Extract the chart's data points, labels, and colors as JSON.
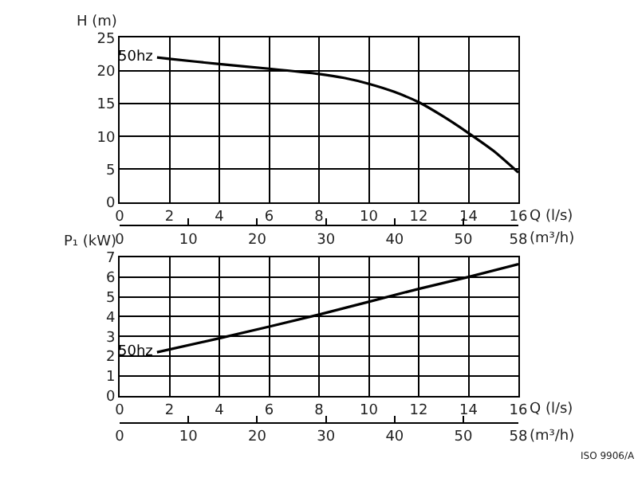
{
  "chart_data": [
    {
      "type": "line",
      "ylabel": "H (m)",
      "xlabel": "Q (l/s)",
      "x2label": "(m³/h)",
      "x": [
        1.5,
        2,
        4,
        6,
        8,
        9,
        10,
        11,
        12,
        13,
        14,
        15,
        16
      ],
      "series": [
        {
          "name": "50hz",
          "color": "#000000",
          "values": [
            22.0,
            21.8,
            21.0,
            20.3,
            19.5,
            18.9,
            18.0,
            16.8,
            15.2,
            13.0,
            10.5,
            7.8,
            4.5
          ]
        }
      ],
      "xlim": [
        0,
        16
      ],
      "xticks": [
        0,
        2,
        4,
        6,
        8,
        10,
        12,
        14,
        16
      ],
      "x2lim": [
        0,
        58
      ],
      "x2ticks": [
        0,
        10,
        20,
        30,
        40,
        50,
        58
      ],
      "ylim": [
        0,
        25
      ],
      "yticks": [
        0,
        5,
        10,
        15,
        20,
        25
      ],
      "grid": true,
      "legend": false,
      "marker": "none",
      "line_style": "solid"
    },
    {
      "type": "line",
      "ylabel": "P₁ (kW)",
      "xlabel": "Q (l/s)",
      "x2label": "(m³/h)",
      "x": [
        1.5,
        4,
        8,
        12,
        14,
        16
      ],
      "series": [
        {
          "name": "50hz",
          "color": "#000000",
          "values": [
            2.2,
            2.9,
            4.1,
            5.4,
            6.0,
            6.65
          ]
        }
      ],
      "xlim": [
        0,
        16
      ],
      "xticks": [
        0,
        2,
        4,
        6,
        8,
        10,
        12,
        14,
        16
      ],
      "x2lim": [
        0,
        58
      ],
      "x2ticks": [
        0,
        10,
        20,
        30,
        40,
        50,
        58
      ],
      "ylim": [
        0,
        7
      ],
      "yticks": [
        0,
        1,
        2,
        3,
        4,
        5,
        6,
        7
      ],
      "grid": true,
      "legend": false,
      "marker": "none",
      "line_style": "solid",
      "annotations": [
        "ISO 9906/A"
      ]
    }
  ]
}
